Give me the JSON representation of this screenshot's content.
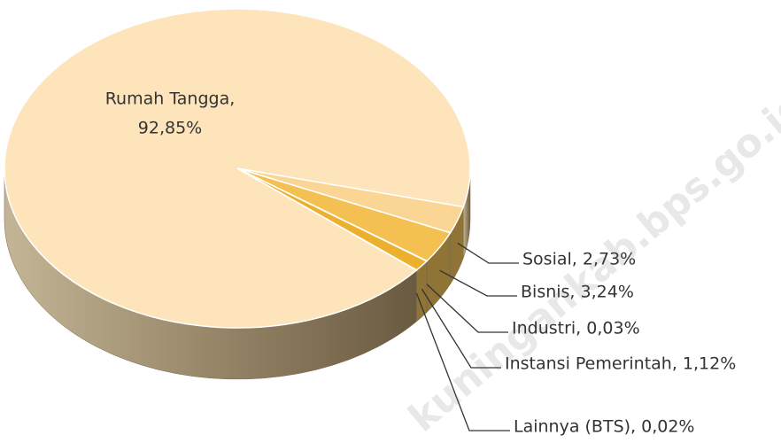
{
  "chart_data": {
    "type": "pie3d",
    "labels": [
      [
        "Rumah Tangga,",
        "92,85%"
      ],
      [
        "Sosial, 2,73%"
      ],
      [
        "Bisnis, 3,24%"
      ],
      [
        "Industri, 0,03%"
      ],
      [
        "Instansi Pemerintah, 1,12%"
      ],
      [
        "Lainnya (BTS), 0,02%"
      ]
    ],
    "values": [
      92.85,
      2.73,
      3.24,
      0.03,
      1.12,
      0.02
    ],
    "colors": [
      "#fde4bb",
      "#fad593",
      "#f4c052",
      "#e9ad2c",
      "#ebb02e",
      "#e0a22a"
    ],
    "watermark": "kuningankab.bps.go.id"
  }
}
